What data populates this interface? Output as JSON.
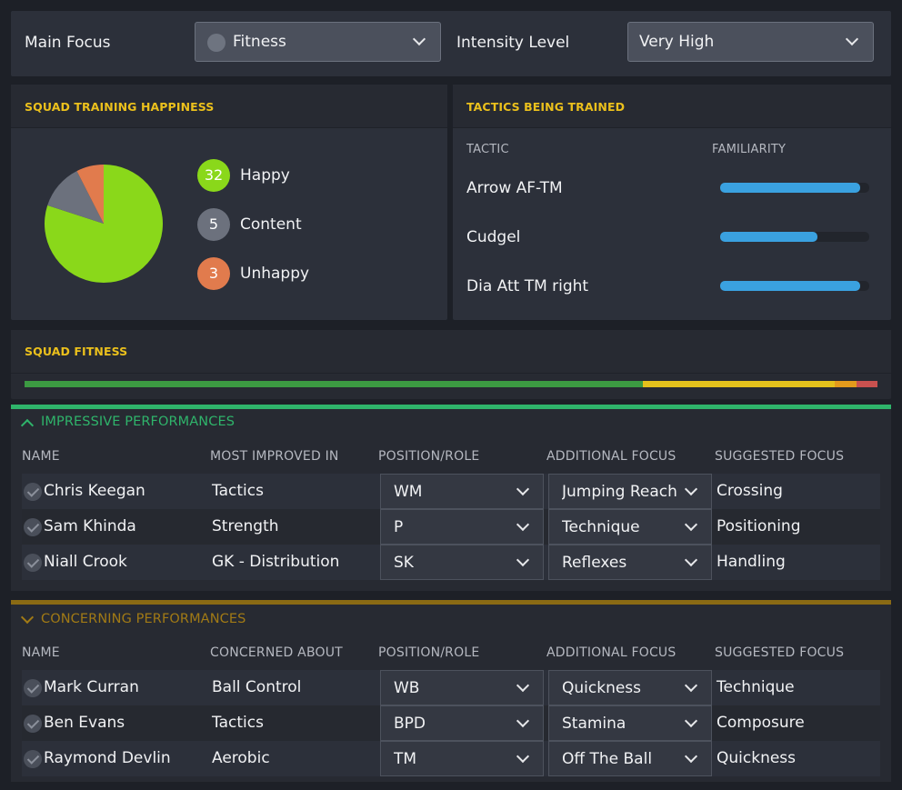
{
  "focus": {
    "main_focus_label": "Main Focus",
    "main_focus_value": "Fitness",
    "intensity_label": "Intensity Level",
    "intensity_value": "Very High"
  },
  "happiness": {
    "title": "SQUAD TRAINING HAPPINESS",
    "items": [
      {
        "count": "32",
        "label": "Happy",
        "color": "#8ad81a",
        "value": 32
      },
      {
        "count": "5",
        "label": "Content",
        "color": "#6c717d",
        "value": 5
      },
      {
        "count": "3",
        "label": "Unhappy",
        "color": "#e17b4d",
        "value": 3
      }
    ]
  },
  "tactics": {
    "title": "TACTICS BEING TRAINED",
    "col_tactic": "TACTIC",
    "col_familiarity": "FAMILIARITY",
    "rows": [
      {
        "name": "Arrow AF-TM",
        "familiarity": 0.94
      },
      {
        "name": "Cudgel",
        "familiarity": 0.65
      },
      {
        "name": "Dia Att TM right",
        "familiarity": 0.94
      }
    ]
  },
  "fitness": {
    "title": "SQUAD FITNESS",
    "segments": [
      {
        "share": 0.725,
        "color": "#3c9a42"
      },
      {
        "share": 0.225,
        "color": "#e4c11c"
      },
      {
        "share": 0.025,
        "color": "#e39a1c"
      },
      {
        "share": 0.025,
        "color": "#c9514f"
      }
    ]
  },
  "impressive": {
    "title": "IMPRESSIVE PERFORMANCES",
    "accent": "#2fb46b",
    "columns": [
      "NAME",
      "MOST IMPROVED IN",
      "POSITION/ROLE",
      "ADDITIONAL FOCUS",
      "SUGGESTED FOCUS"
    ],
    "rows": [
      {
        "name": "Chris Keegan",
        "reason": "Tactics",
        "position": "WM",
        "additional": "Jumping Reach",
        "suggested": "Crossing"
      },
      {
        "name": "Sam Khinda",
        "reason": "Strength",
        "position": "P",
        "additional": "Technique",
        "suggested": "Positioning"
      },
      {
        "name": "Niall Crook",
        "reason": "GK - Distribution",
        "position": "SK",
        "additional": "Reflexes",
        "suggested": "Handling"
      }
    ]
  },
  "concerning": {
    "title": "CONCERNING PERFORMANCES",
    "accent": "#8a6a14",
    "columns": [
      "NAME",
      "CONCERNED ABOUT",
      "POSITION/ROLE",
      "ADDITIONAL FOCUS",
      "SUGGESTED FOCUS"
    ],
    "rows": [
      {
        "name": "Mark Curran",
        "reason": "Ball Control",
        "position": "WB",
        "additional": "Quickness",
        "suggested": "Technique"
      },
      {
        "name": "Ben Evans",
        "reason": "Tactics",
        "position": "BPD",
        "additional": "Stamina",
        "suggested": "Composure"
      },
      {
        "name": "Raymond Devlin",
        "reason": "Aerobic",
        "position": "TM",
        "additional": "Off The Ball",
        "suggested": "Quickness"
      }
    ]
  }
}
